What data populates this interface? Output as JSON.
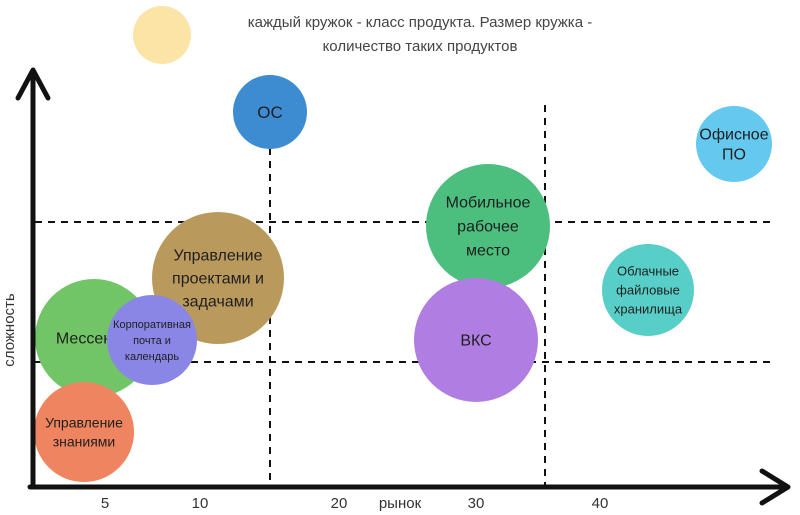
{
  "legend": {
    "line1": "каждый кружок - класс продукта. Размер кружка -",
    "line2": "количество таких продуктов",
    "swatch_color": "#FCE3A6"
  },
  "chart_data": {
    "type": "scatter",
    "subtype": "bubble",
    "xlabel": "рынок",
    "ylabel": "сложность",
    "x_ticks": [
      "5",
      "10",
      "20",
      "30",
      "40"
    ],
    "grid": "dashed quadrant lines",
    "points": [
      {
        "label": "ОС",
        "color": "#3D8BD0"
      },
      {
        "label": "Офисное\nПО",
        "color": "#65C8EF"
      },
      {
        "label": "Мобильное\nрабочее\nместо",
        "color": "#4CBE7E"
      },
      {
        "label": "Облачные\nфайловые\nхранилища",
        "color": "#57CEC7"
      },
      {
        "label": "ВКС",
        "color": "#B07EE2"
      },
      {
        "label": "Управление\nпроектами и\nзадачами",
        "color": "#BA9A5C"
      },
      {
        "label": "Мессендж",
        "color": "#71C566"
      },
      {
        "label": "Корпоративная\nпочта и\nкалендарь",
        "color": "#8A86E6"
      },
      {
        "label": "Управление\nзнаниями",
        "color": "#EE8460"
      }
    ]
  }
}
